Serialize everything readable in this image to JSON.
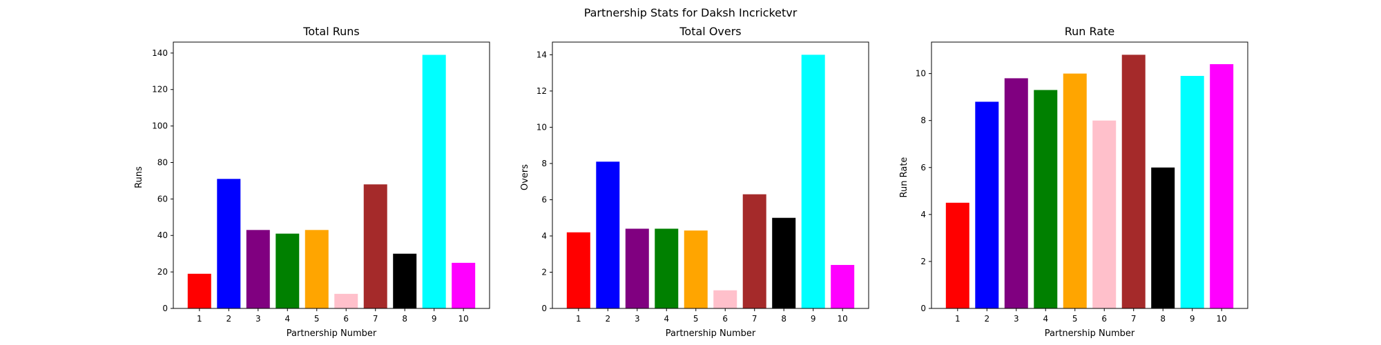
{
  "figure_title": "Partnership Stats for Daksh Incricketvr",
  "chart_data": [
    {
      "type": "bar",
      "title": "Total Runs",
      "xlabel": "Partnership Number",
      "ylabel": "Runs",
      "categories": [
        "1",
        "2",
        "3",
        "4",
        "5",
        "6",
        "7",
        "8",
        "9",
        "10"
      ],
      "values": [
        19,
        71,
        43,
        41,
        43,
        8,
        68,
        30,
        139,
        25
      ],
      "ylim": [
        0,
        146
      ],
      "yticks": [
        0,
        20,
        40,
        60,
        80,
        100,
        120,
        140
      ],
      "grid": false
    },
    {
      "type": "bar",
      "title": "Total Overs",
      "xlabel": "Partnership Number",
      "ylabel": "Overs",
      "categories": [
        "1",
        "2",
        "3",
        "4",
        "5",
        "6",
        "7",
        "8",
        "9",
        "10"
      ],
      "values": [
        4.2,
        8.1,
        4.4,
        4.4,
        4.3,
        1.0,
        6.3,
        5.0,
        14.0,
        2.4
      ],
      "ylim": [
        0,
        14.7
      ],
      "yticks": [
        0,
        2,
        4,
        6,
        8,
        10,
        12,
        14
      ],
      "grid": false
    },
    {
      "type": "bar",
      "title": "Run Rate",
      "xlabel": "Partnership Number",
      "ylabel": "Run Rate",
      "categories": [
        "1",
        "2",
        "3",
        "4",
        "5",
        "6",
        "7",
        "8",
        "9",
        "10"
      ],
      "values": [
        4.5,
        8.8,
        9.8,
        9.3,
        10.0,
        8.0,
        10.8,
        6.0,
        9.9,
        10.4
      ],
      "ylim": [
        0,
        11.34
      ],
      "yticks": [
        0,
        2,
        4,
        6,
        8,
        10
      ],
      "grid": false
    }
  ],
  "bar_colors": [
    "#ff0000",
    "#0000ff",
    "#800080",
    "#008000",
    "#ffa500",
    "#ffc0cb",
    "#a52a2a",
    "#000000",
    "#00ffff",
    "#ff00ff"
  ]
}
